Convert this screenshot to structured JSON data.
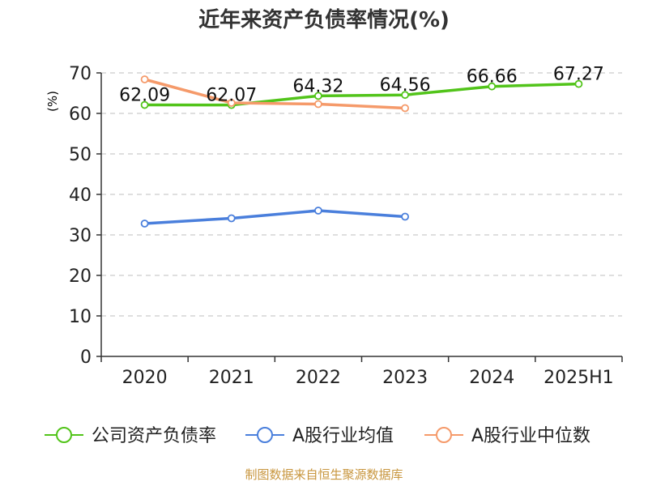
{
  "chart_data": {
    "type": "line",
    "title": "近年来资产负债率情况(%)",
    "ylabel": "(%)",
    "categories": [
      "2020",
      "2021",
      "2022",
      "2023",
      "2024",
      "2025H1"
    ],
    "ylim": [
      0,
      70
    ],
    "yticks": [
      "0",
      "10",
      "20",
      "30",
      "40",
      "50",
      "60",
      "70"
    ],
    "grid": true,
    "legend_position": "bottom",
    "series": [
      {
        "name": "公司资产负债率",
        "color": "#52c41a",
        "values": [
          62.09,
          62.07,
          64.32,
          64.56,
          66.66,
          67.27
        ],
        "labels": [
          "62.09",
          "62.07",
          "64.32",
          "64.56",
          "66.66",
          "67.27"
        ],
        "show_labels": true
      },
      {
        "name": "A股行业均值",
        "color": "#4a7fdc",
        "values": [
          32.8,
          34.1,
          36.0,
          34.5,
          null,
          null
        ],
        "show_labels": false
      },
      {
        "name": "A股行业中位数",
        "color": "#f59a6a",
        "values": [
          68.4,
          62.6,
          62.3,
          61.3,
          null,
          null
        ],
        "show_labels": false
      }
    ],
    "source": "制图数据来自恒生聚源数据库"
  }
}
